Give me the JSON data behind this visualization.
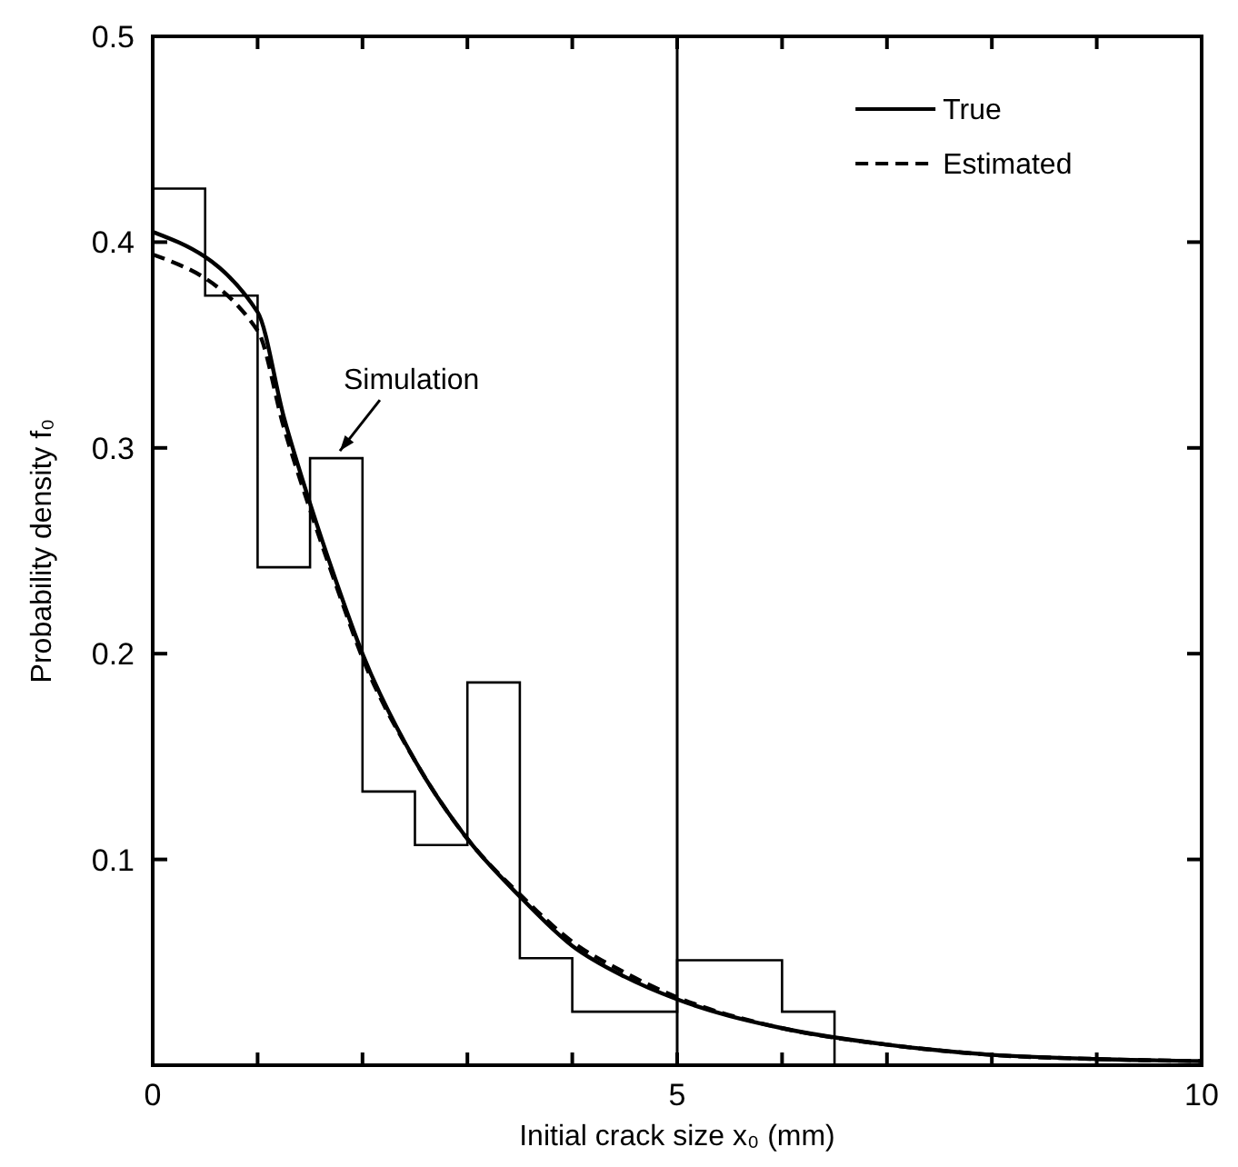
{
  "chart_data": {
    "type": "line",
    "xlabel": "Initial crack size x₀ (mm)",
    "ylabel": "Probability density f₀",
    "xlim": [
      0,
      10
    ],
    "ylim": [
      0,
      0.5
    ],
    "xticks": [
      0,
      {
        "value": 1,
        "label": null
      },
      {
        "value": 2,
        "label": null
      },
      {
        "value": 3,
        "label": null
      },
      {
        "value": 4,
        "label": null
      },
      5,
      {
        "value": 6,
        "label": null
      },
      {
        "value": 7,
        "label": null
      },
      {
        "value": 8,
        "label": null
      },
      {
        "value": 9,
        "label": null
      },
      10
    ],
    "yticks": [
      0.1,
      0.2,
      0.3,
      0.4,
      0.5
    ],
    "grid": false,
    "legend": "top right",
    "ref_lines": [
      {
        "axis": "x",
        "value": 5,
        "color": "#000000",
        "line_style": "solid"
      }
    ],
    "annotations": [
      {
        "text": "Simulation",
        "x": 1.75,
        "y": 0.295
      }
    ],
    "series": [
      {
        "type": "step",
        "color": "#000000",
        "x": [
          0,
          0.5,
          1,
          1.5,
          2,
          2.5,
          3,
          3.5,
          4,
          4.5,
          5,
          6,
          6.5
        ],
        "values": [
          0.426,
          0.374,
          0.242,
          0.295,
          0.133,
          0.107,
          0.186,
          0.052,
          0.026,
          0.026,
          0.051,
          0.026,
          0
        ]
      },
      {
        "name": "True",
        "color": "#000000",
        "line_style": "solid",
        "x": [
          0,
          1,
          1.25,
          1.5,
          1.75,
          2,
          2.5,
          3,
          3.5,
          4,
          4.5,
          5,
          6,
          7,
          8,
          9,
          10
        ],
        "values": [
          0.405,
          0.366,
          0.315,
          0.273,
          0.235,
          0.2,
          0.148,
          0.11,
          0.082,
          0.058,
          0.043,
          0.032,
          0.018,
          0.01,
          0.005,
          0.003,
          0.002
        ]
      },
      {
        "name": "Estimated",
        "color": "#000000",
        "line_style": "dashed",
        "x": [
          0,
          1,
          1.25,
          1.5,
          1.75,
          2,
          2.5,
          3,
          3.5,
          4,
          4.5,
          5,
          6,
          7,
          8,
          9,
          10
        ],
        "values": [
          0.394,
          0.357,
          0.31,
          0.27,
          0.233,
          0.198,
          0.148,
          0.11,
          0.083,
          0.06,
          0.045,
          0.033,
          0.018,
          0.01,
          0.005,
          0.003,
          0.002
        ]
      }
    ]
  }
}
